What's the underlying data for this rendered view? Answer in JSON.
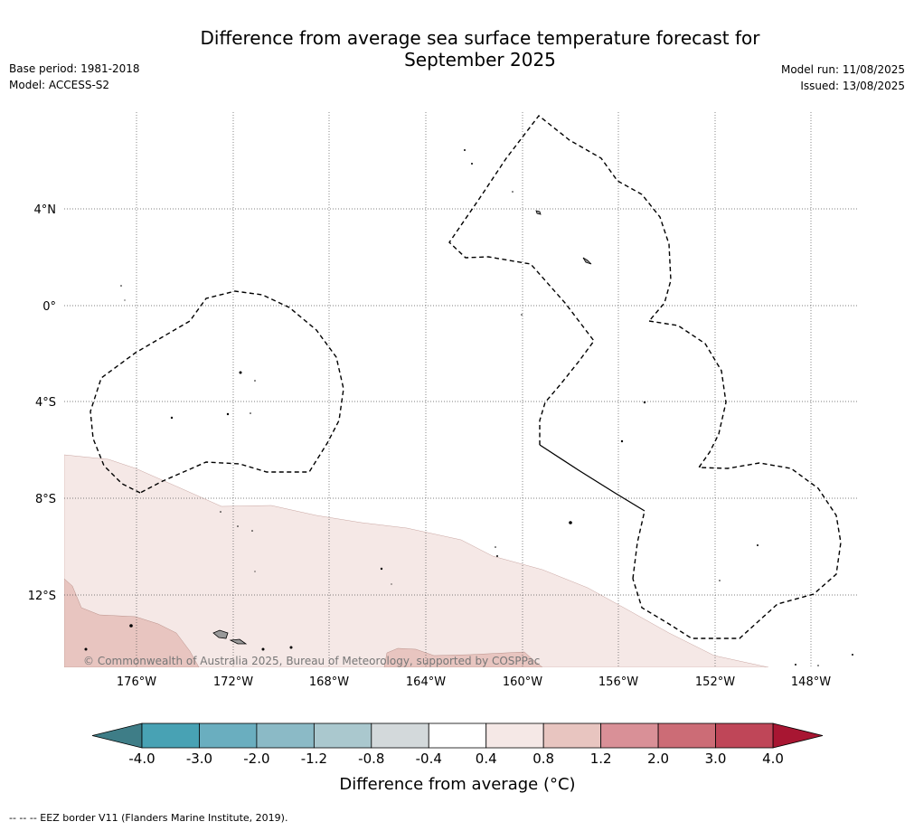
{
  "title": {
    "line1": "Difference from average sea surface temperature forecast for",
    "line2": "September 2025"
  },
  "meta": {
    "base_period": "Base period: 1981-2018",
    "model": "Model: ACCESS-S2",
    "model_run": "Model run: 11/08/2025",
    "issued": "Issued: 13/08/2025"
  },
  "map": {
    "lon_ticks": [
      "176°W",
      "172°W",
      "168°W",
      "164°W",
      "160°W",
      "156°W",
      "152°W",
      "148°W"
    ],
    "lat_ticks": [
      "4°N",
      "0°",
      "4°S",
      "8°S",
      "12°S"
    ],
    "copyright": "© Commonwealth of Australia 2025, Bureau of Meteorology, supported by COSPPac"
  },
  "colorbar": {
    "title": "Difference from average (°C)",
    "ticks": [
      "-4.0",
      "-3.0",
      "-2.0",
      "-1.2",
      "-0.8",
      "-0.4",
      "0.4",
      "0.8",
      "1.2",
      "2.0",
      "3.0",
      "4.0"
    ],
    "colors": [
      "#48a2b4",
      "#6aaebf",
      "#8bbac6",
      "#aac8ce",
      "#d3d9db",
      "#ffffff",
      "#f5e8e6",
      "#e8c5c0",
      "#d99097",
      "#cc6c76",
      "#bf4658"
    ],
    "under_color": "#3e7d87",
    "over_color": "#a81632"
  },
  "footer": "--  --  -- EEZ border V11 (Flanders Marine Institute, 2019)."
}
